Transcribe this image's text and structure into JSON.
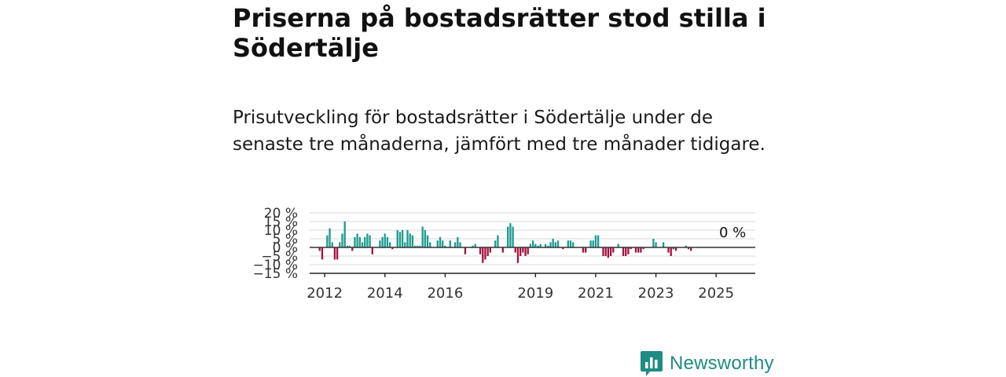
{
  "header": {
    "title": "Priserna på bostadsrätter stod stilla i Södertälje",
    "subtitle": "Prisutveckling för bostadsrätter i Södertälje under de senaste tre månaderna, jämfört med tre månader tidigare."
  },
  "brand": {
    "name": "Newsworthy",
    "icon": "newsworthy-logo-icon",
    "color": "#1f8c84"
  },
  "colors": {
    "positive": "#1a9b8e",
    "negative": "#a3123f",
    "grid": "#d9d9d9",
    "axis": "#222222"
  },
  "chart_data": {
    "type": "bar",
    "ylim": [
      -15,
      20
    ],
    "yticks": [
      20,
      15,
      10,
      5,
      0,
      -5,
      -10,
      -15
    ],
    "ytick_labels": [
      "20 %",
      "15 %",
      "10 %",
      "5 %",
      "0 %",
      "−5 %",
      "−10 %",
      "−15 %"
    ],
    "xlim": [
      2011.5,
      2026.3
    ],
    "xticks": [
      2012,
      2014,
      2016,
      2019,
      2021,
      2023,
      2025
    ],
    "xtick_labels": [
      "2012",
      "2014",
      "2016",
      "2019",
      "2021",
      "2023",
      "2025"
    ],
    "last_value_label": "0 %",
    "grid": true,
    "x_start": 2011.833,
    "x_step": 0.08333,
    "values": [
      -2,
      -7,
      0,
      7,
      11,
      3,
      -7,
      -7,
      3,
      8,
      15,
      1,
      1,
      -2,
      6,
      8,
      6,
      3,
      6,
      8,
      7,
      -4,
      0,
      0,
      4,
      6,
      8,
      6,
      3,
      -1,
      0,
      10,
      9,
      10,
      3,
      10,
      8,
      7,
      1,
      1,
      1,
      12,
      10,
      7,
      3,
      0,
      0,
      4,
      6,
      4,
      1,
      0,
      4,
      0,
      3,
      6,
      3,
      0,
      -4,
      0,
      0,
      1,
      2,
      0,
      -4,
      -9,
      -7,
      -5,
      -3,
      0,
      4,
      7,
      0,
      -3,
      0,
      12,
      14,
      12,
      -3,
      -9,
      -5,
      -3,
      -5,
      -4,
      2,
      4,
      2,
      1,
      2,
      0,
      2,
      1,
      3,
      5,
      3,
      4,
      0,
      -1,
      0,
      4,
      4,
      3,
      0,
      0,
      0,
      -3,
      -3,
      0,
      4,
      4,
      7,
      7,
      0,
      -5,
      -5,
      -6,
      -5,
      -3,
      0,
      2,
      0,
      -5,
      -5,
      -4,
      -1,
      0,
      -3,
      -3,
      -3,
      -1,
      0,
      0,
      0,
      5,
      3,
      0,
      0,
      3,
      0,
      -3,
      -5,
      -1,
      -2,
      0,
      0,
      0,
      1,
      -1,
      -2,
      0
    ]
  }
}
